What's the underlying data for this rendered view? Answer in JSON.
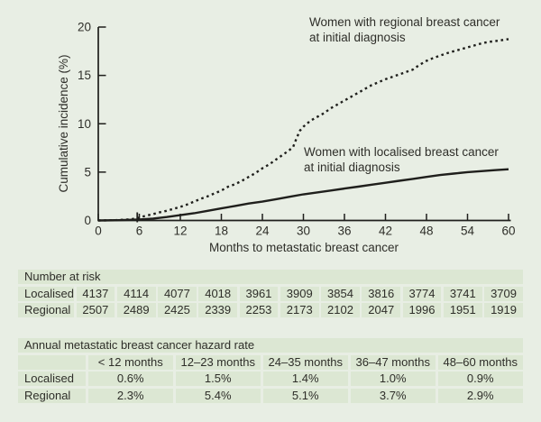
{
  "colors": {
    "background": "#e8eee4",
    "table_cell": "#dce7d3",
    "line_ink": "#1f1f1c",
    "text": "#2e2e29"
  },
  "chart_data": {
    "type": "line",
    "title": "",
    "xlabel": "Months to metastatic breast cancer",
    "ylabel": "Cumulative incidence (%)",
    "xlim": [
      0,
      60
    ],
    "ylim": [
      0,
      20
    ],
    "x_ticks": [
      "0",
      "6",
      "12",
      "18",
      "24",
      "30",
      "36",
      "42",
      "48",
      "54",
      "60"
    ],
    "y_ticks": [
      "0",
      "5",
      "10",
      "15",
      "20"
    ],
    "grid": false,
    "legend_position": "inline-annotations",
    "censor_mark_month": 5.7,
    "series": [
      {
        "name": "Women with regional breast cancer at initial diagnosis",
        "style": "dotted",
        "x": [
          0,
          2,
          4,
          5,
          6,
          7,
          8,
          9,
          10,
          11,
          12,
          13,
          14,
          15,
          16,
          17,
          18,
          19,
          20,
          21,
          22,
          23,
          24,
          25,
          26,
          27,
          28,
          28.5,
          29,
          29.5,
          30,
          31,
          32,
          33,
          34,
          35,
          36,
          37,
          38,
          39,
          40,
          41,
          42,
          43,
          44,
          45,
          46,
          47,
          48,
          49,
          50,
          51,
          52,
          53,
          54,
          55,
          56,
          57,
          58,
          59,
          60
        ],
        "y": [
          0,
          0.02,
          0.08,
          0.15,
          0.3,
          0.5,
          0.65,
          0.85,
          1.0,
          1.2,
          1.4,
          1.65,
          1.95,
          2.25,
          2.5,
          2.8,
          3.1,
          3.5,
          3.75,
          4.1,
          4.5,
          4.9,
          5.4,
          5.8,
          6.3,
          6.8,
          7.3,
          7.6,
          8.5,
          9.3,
          9.7,
          10.3,
          10.7,
          11.1,
          11.6,
          12.0,
          12.4,
          12.8,
          13.2,
          13.6,
          14.0,
          14.3,
          14.6,
          14.85,
          15.1,
          15.35,
          15.6,
          16.1,
          16.5,
          16.8,
          17.05,
          17.3,
          17.5,
          17.7,
          17.9,
          18.1,
          18.3,
          18.45,
          18.55,
          18.65,
          18.75
        ]
      },
      {
        "name": "Women with localised breast cancer at initial diagnosis",
        "style": "solid",
        "x": [
          0,
          3,
          6,
          8,
          10,
          12,
          14,
          16,
          18,
          20,
          22,
          24,
          26,
          28,
          30,
          32,
          34,
          36,
          38,
          40,
          42,
          44,
          46,
          48,
          50,
          52,
          54,
          56,
          58,
          60
        ],
        "y": [
          0,
          0.03,
          0.1,
          0.2,
          0.35,
          0.55,
          0.75,
          1.0,
          1.25,
          1.5,
          1.75,
          1.95,
          2.2,
          2.45,
          2.7,
          2.9,
          3.1,
          3.3,
          3.5,
          3.7,
          3.9,
          4.1,
          4.3,
          4.5,
          4.7,
          4.85,
          5.0,
          5.1,
          5.2,
          5.3
        ]
      }
    ],
    "annotations": [
      {
        "line1": "Women with regional breast cancer",
        "line2": "at initial diagnosis"
      },
      {
        "line1": "Women with localised breast cancer",
        "line2": "at initial diagnosis"
      }
    ]
  },
  "risk_table": {
    "title": "Number at risk",
    "rows": [
      {
        "label": "Localised",
        "values": [
          "4137",
          "4114",
          "4077",
          "4018",
          "3961",
          "3909",
          "3854",
          "3816",
          "3774",
          "3741",
          "3709"
        ]
      },
      {
        "label": "Regional",
        "values": [
          "2507",
          "2489",
          "2425",
          "2339",
          "2253",
          "2173",
          "2102",
          "2047",
          "1996",
          "1951",
          "1919"
        ]
      }
    ]
  },
  "hazard_table": {
    "title": "Annual metastatic breast cancer hazard rate",
    "columns": [
      "< 12 months",
      "12–23 months",
      "24–35 months",
      "36–47 months",
      "48–60 months"
    ],
    "rows": [
      {
        "label": "Localised",
        "values": [
          "0.6%",
          "1.5%",
          "1.4%",
          "1.0%",
          "0.9%"
        ]
      },
      {
        "label": "Regional",
        "values": [
          "2.3%",
          "5.4%",
          "5.1%",
          "3.7%",
          "2.9%"
        ]
      }
    ]
  }
}
